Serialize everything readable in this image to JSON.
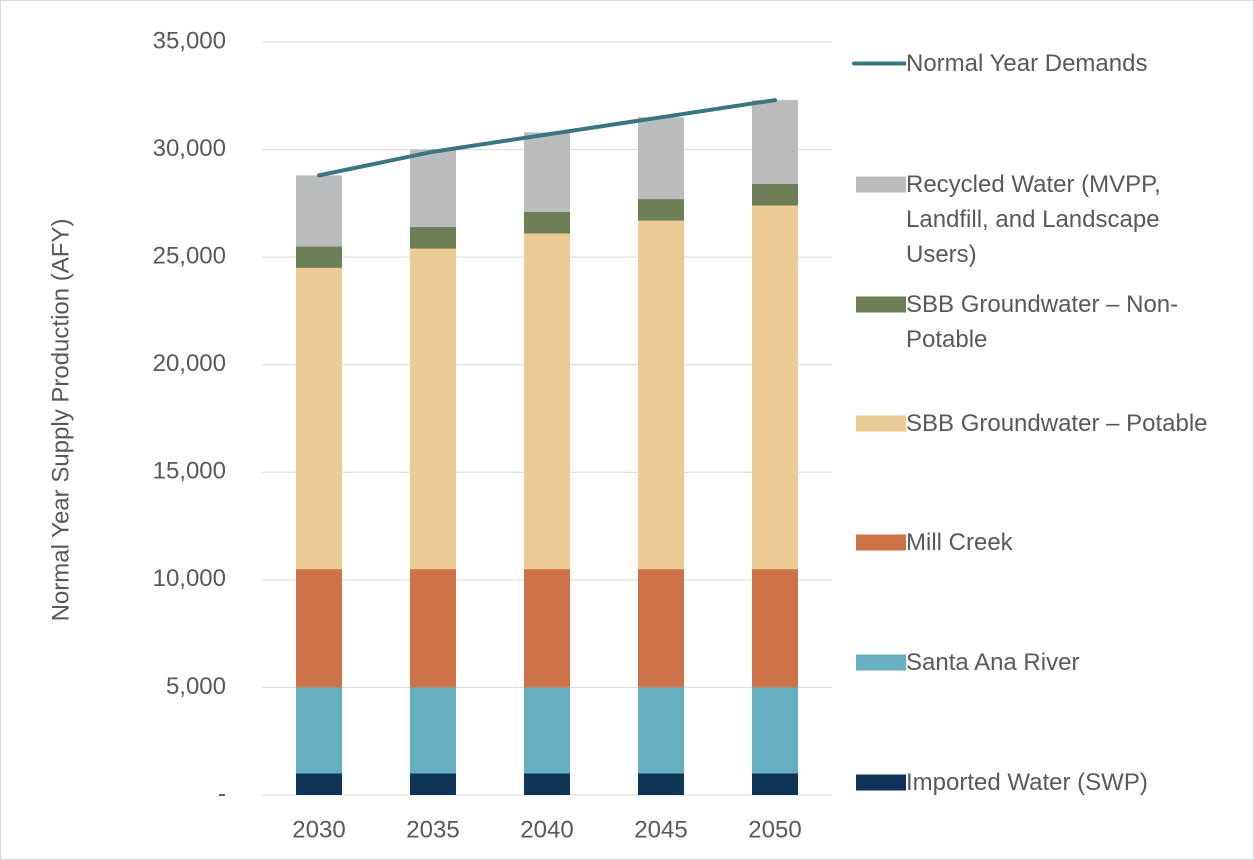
{
  "chart_data": {
    "type": "bar",
    "stacked": true,
    "y_axis_label": "Normal Year Supply Production (AFY)",
    "categories": [
      "2030",
      "2035",
      "2040",
      "2045",
      "2050"
    ],
    "ylim": [
      0,
      35000
    ],
    "yticks": [
      {
        "value": 0,
        "label": "-"
      },
      {
        "value": 5000,
        "label": "5,000"
      },
      {
        "value": 10000,
        "label": "10,000"
      },
      {
        "value": 15000,
        "label": "15,000"
      },
      {
        "value": 20000,
        "label": "20,000"
      },
      {
        "value": 25000,
        "label": "25,000"
      },
      {
        "value": 30000,
        "label": "30,000"
      },
      {
        "value": 35000,
        "label": "35,000"
      }
    ],
    "grid": true,
    "legend": "right",
    "series": [
      {
        "name": "Imported Water (SWP)",
        "color": "#0e3558",
        "values": [
          1000,
          1000,
          1000,
          1000,
          1000
        ]
      },
      {
        "name": "Santa Ana River",
        "color": "#65afc0",
        "values": [
          4000,
          4000,
          4000,
          4000,
          4000
        ]
      },
      {
        "name": "Mill Creek",
        "color": "#cd7247",
        "values": [
          5500,
          5500,
          5500,
          5500,
          5500
        ]
      },
      {
        "name": "SBB Groundwater – Potable",
        "color": "#ebcb93",
        "values": [
          14000,
          14900,
          15600,
          16200,
          16900
        ]
      },
      {
        "name": "SBB Groundwater – Non-Potable",
        "color": "#6e7e55",
        "values": [
          1000,
          1000,
          1000,
          1000,
          1000
        ]
      },
      {
        "name": "Recycled Water (MVPP, Landfill, and Landscape Users)",
        "color": "#bbbcbe",
        "values": [
          3300,
          3600,
          3700,
          3800,
          3900
        ]
      },
      {
        "name": "Normal Year Demands",
        "color": "#3a7680",
        "type": "line",
        "values": [
          28800,
          29900,
          30700,
          31500,
          32300
        ]
      }
    ]
  }
}
